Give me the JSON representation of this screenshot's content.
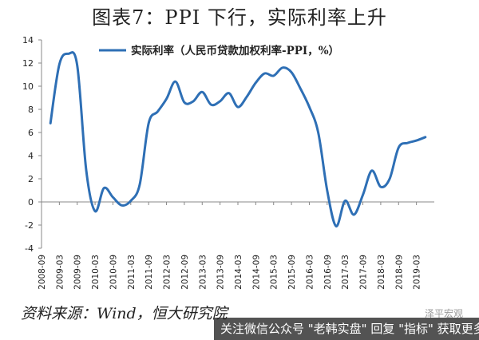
{
  "title": "图表7：PPI 下行，实际利率上升",
  "source": "资料来源：Wind，恒大研究院",
  "watermark_text": "泽平宏观",
  "bottom_banner": "关注微信公众号 \"老韩实盘\" 回复 \"指标\" 获取更多",
  "chart_data": {
    "type": "line",
    "title": "图表7：PPI 下行，实际利率上升",
    "xlabel": "",
    "ylabel": "",
    "ylim": [
      -4,
      14
    ],
    "yticks": [
      -4,
      -2,
      0,
      2,
      4,
      6,
      8,
      10,
      12,
      14
    ],
    "grid": false,
    "legend_position": "top-left",
    "xtick_labels": [
      "2008-09",
      "2009-03",
      "2009-09",
      "2010-03",
      "2010-09",
      "2011-03",
      "2011-09",
      "2012-03",
      "2012-09",
      "2013-03",
      "2013-09",
      "2014-03",
      "2014-09",
      "2015-03",
      "2015-09",
      "2016-03",
      "2016-09",
      "2017-03",
      "2017-09",
      "2018-03",
      "2018-09",
      "2019-03"
    ],
    "series": [
      {
        "name": "实际利率（人民币贷款加权利率-PPI，%）",
        "color": "#2e6fb5",
        "x": [
          "2008-12",
          "2009-03",
          "2009-06",
          "2009-09",
          "2009-12",
          "2010-03",
          "2010-06",
          "2010-09",
          "2010-12",
          "2011-03",
          "2011-06",
          "2011-09",
          "2011-12",
          "2012-03",
          "2012-06",
          "2012-09",
          "2012-12",
          "2013-03",
          "2013-06",
          "2013-09",
          "2013-12",
          "2014-03",
          "2014-06",
          "2014-09",
          "2014-12",
          "2015-03",
          "2015-06",
          "2015-09",
          "2015-12",
          "2016-03",
          "2016-06",
          "2016-09",
          "2016-12",
          "2017-03",
          "2017-06",
          "2017-09",
          "2017-12",
          "2018-03",
          "2018-06",
          "2018-09",
          "2018-12",
          "2019-03",
          "2019-06"
        ],
        "values": [
          6.8,
          11.9,
          12.8,
          11.8,
          2.8,
          -0.8,
          1.2,
          0.4,
          -0.3,
          0.1,
          1.5,
          6.8,
          7.8,
          8.9,
          10.4,
          8.6,
          8.7,
          9.5,
          8.4,
          8.7,
          9.4,
          8.2,
          9.1,
          10.3,
          11.1,
          10.9,
          11.6,
          11.2,
          9.8,
          8.2,
          6.0,
          1.0,
          -2.1,
          0.1,
          -1.1,
          0.6,
          2.7,
          1.3,
          2.0,
          4.7,
          5.1,
          5.3,
          5.6
        ]
      }
    ]
  }
}
